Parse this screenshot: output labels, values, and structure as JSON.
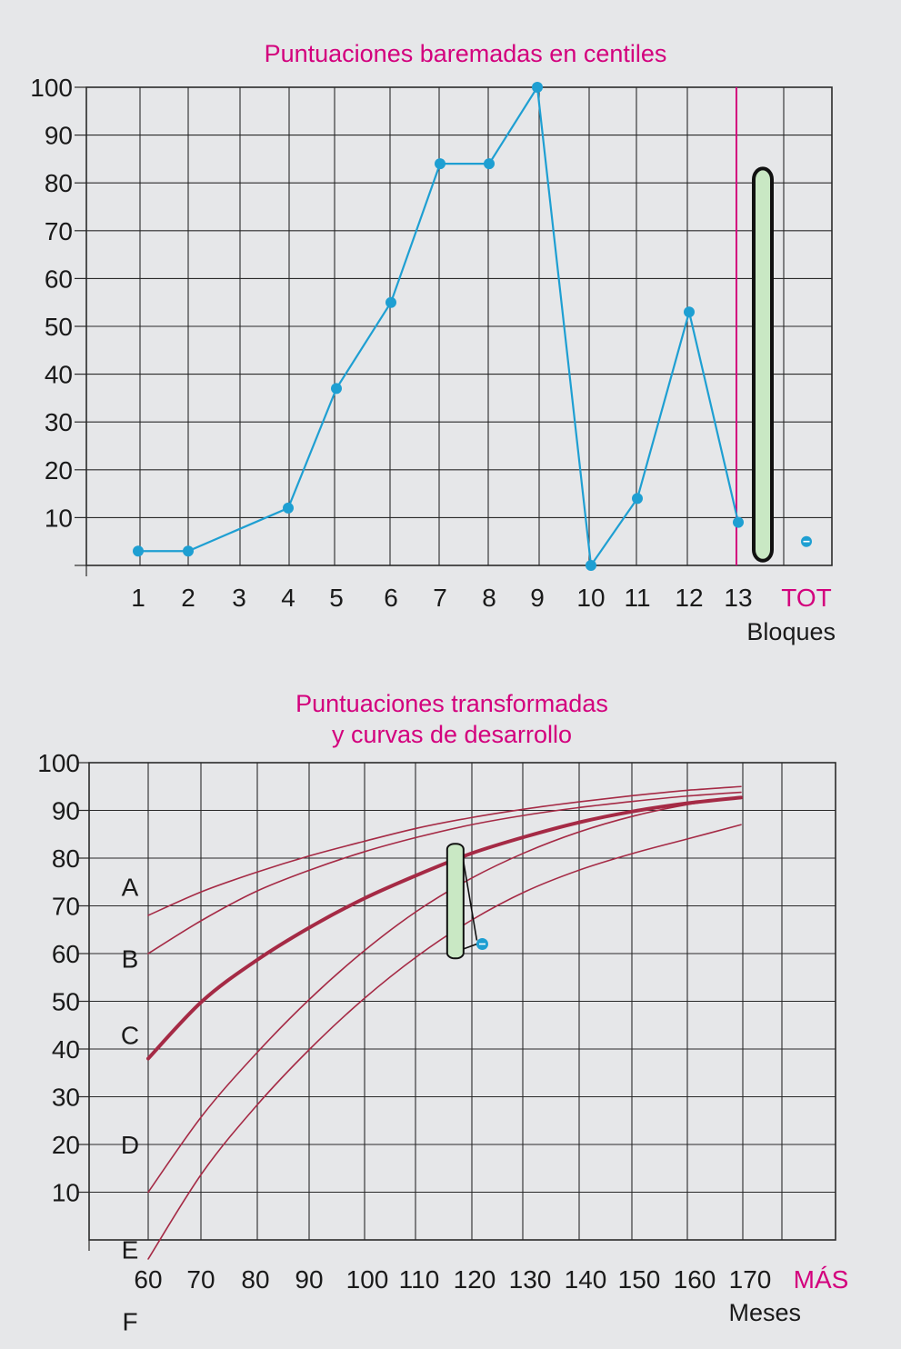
{
  "colors": {
    "background": "#e6e7e9",
    "title": "#d3007d",
    "grid": "#2a2a2a",
    "centile_series": "#1e9fd2",
    "curves": "#a52a45",
    "range_bar_fill": "#c9e8c4",
    "tot_marker_line": "#d3007d"
  },
  "chart_data": [
    {
      "id": "centiles",
      "type": "line",
      "title": "Puntuaciones baremadas en centiles",
      "xlabel": "Bloques",
      "x_ticks": [
        "1",
        "2",
        "3",
        "4",
        "5",
        "6",
        "7",
        "8",
        "9",
        "10",
        "11",
        "12",
        "13",
        "TOT"
      ],
      "ylim": [
        0,
        100
      ],
      "y_ticks": [
        "100",
        "90",
        "80",
        "70",
        "60",
        "50",
        "40",
        "30",
        "20",
        "10"
      ],
      "grid": true,
      "series": [
        {
          "points": [
            {
              "x": "1",
              "y": 3
            },
            {
              "x": "2",
              "y": 3
            },
            {
              "x": "4",
              "y": 12
            },
            {
              "x": "5",
              "y": 37
            },
            {
              "x": "6",
              "y": 55
            },
            {
              "x": "7",
              "y": 84
            },
            {
              "x": "8",
              "y": 84
            },
            {
              "x": "9",
              "y": 100
            },
            {
              "x": "10",
              "y": 0
            },
            {
              "x": "11",
              "y": 14
            },
            {
              "x": "12",
              "y": 53
            },
            {
              "x": "13",
              "y": 9
            }
          ]
        }
      ],
      "tot_range": {
        "low": 1,
        "high": 83
      },
      "tot_point": {
        "x": "TOT",
        "y": 5
      }
    },
    {
      "id": "development",
      "type": "line",
      "title": "Puntuaciones transformadas\ny curvas de desarrollo",
      "xlabel": "Meses",
      "x_ticks": [
        "60",
        "70",
        "80",
        "90",
        "100",
        "110",
        "120",
        "130",
        "140",
        "150",
        "160",
        "170",
        "MÁS"
      ],
      "ylim": [
        0,
        100
      ],
      "y_ticks": [
        "100",
        "90",
        "80",
        "70",
        "60",
        "50",
        "40",
        "30",
        "20",
        "10"
      ],
      "grid": true,
      "curve_labels": [
        {
          "label": "A",
          "y": 74
        },
        {
          "label": "B",
          "y": 59
        },
        {
          "label": "C",
          "y": 43
        },
        {
          "label": "D",
          "y": 20
        },
        {
          "label": "E",
          "y": -2
        },
        {
          "label": "F",
          "y": -17
        }
      ],
      "series": [
        {
          "label": "A",
          "x": [
            60,
            70,
            80,
            90,
            100,
            110,
            120,
            130,
            140,
            150,
            160,
            170
          ],
          "y": [
            68,
            73,
            77,
            80.5,
            83.5,
            86.3,
            88.5,
            90.3,
            91.8,
            93.1,
            94.2,
            95
          ]
        },
        {
          "label": "B",
          "x": [
            60,
            70,
            80,
            90,
            100,
            110,
            120,
            130,
            140,
            150,
            160,
            170
          ],
          "y": [
            60,
            67,
            73,
            77.5,
            81.3,
            84.4,
            87,
            89,
            90.6,
            91.9,
            93,
            93.8
          ]
        },
        {
          "label": "C",
          "x": [
            60,
            70,
            80,
            90,
            100,
            110,
            120,
            130,
            140,
            150,
            160,
            170
          ],
          "y": [
            38,
            50,
            58.5,
            65.5,
            71.5,
            76.5,
            81,
            84.5,
            87.5,
            89.8,
            91.5,
            92.7
          ],
          "emphasis": true
        },
        {
          "label": "D",
          "x": [
            60,
            70,
            80,
            90,
            100,
            110,
            120,
            130,
            140,
            150,
            160,
            170
          ],
          "y": [
            10,
            26,
            39,
            50.5,
            60.5,
            69,
            75.8,
            81.2,
            85.5,
            88.8,
            91.2,
            92.8
          ]
        },
        {
          "label": "F",
          "x": [
            60,
            70,
            80,
            90,
            100,
            110,
            120,
            130,
            140,
            150,
            160,
            170
          ],
          "y": [
            -4,
            14,
            28,
            40,
            50.5,
            59.5,
            67,
            73,
            77.5,
            81,
            84,
            87
          ]
        }
      ],
      "range_bar": {
        "x": 117,
        "low": 59,
        "high": 83
      },
      "point": {
        "x": 122,
        "y": 62
      }
    }
  ]
}
